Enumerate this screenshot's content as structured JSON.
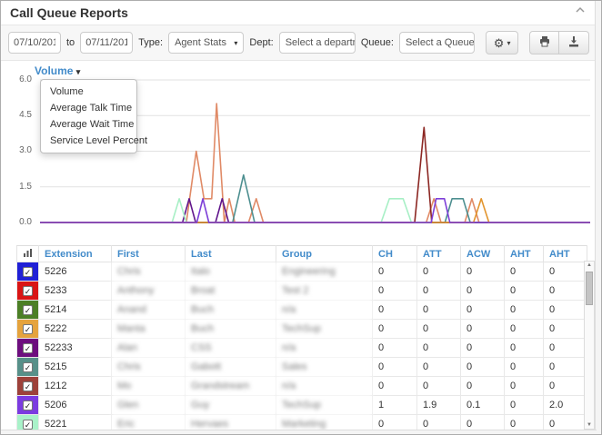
{
  "page": {
    "title": "Call Queue Reports"
  },
  "toolbar": {
    "date_from": "07/10/2014",
    "to_label": "to",
    "date_to": "07/11/2014",
    "type_label": "Type:",
    "type_value": "Agent Stats",
    "dept_label": "Dept:",
    "dept_value": "Select a departme",
    "queue_label": "Queue:",
    "queue_value": "Select a Queue",
    "icons": {
      "gear": "gear-icon",
      "print": "printer-icon",
      "download": "download-icon"
    }
  },
  "metric_dropdown": {
    "selected": "Volume",
    "options": [
      "Volume",
      "Average Talk Time",
      "Average Wait Time",
      "Service Level Percent"
    ]
  },
  "chart_data": {
    "type": "line",
    "title": "Volume",
    "xlabel": "",
    "ylabel": "",
    "ylim": [
      0,
      6
    ],
    "grid": true,
    "yticks": [
      {
        "label": "0.0",
        "value": 0
      },
      {
        "label": "1.5",
        "value": 1.5
      },
      {
        "label": "3.0",
        "value": 3
      },
      {
        "label": "4.5",
        "value": 4.5
      },
      {
        "label": "6.0",
        "value": 6
      }
    ],
    "x_unit": "percent-of-range",
    "series": [
      {
        "name": "5226",
        "color": "#2121d8",
        "points": [
          [
            0,
            0
          ],
          [
            100,
            0
          ]
        ]
      },
      {
        "name": "5233",
        "color": "#d91414",
        "points": [
          [
            0,
            0
          ],
          [
            100,
            0
          ]
        ]
      },
      {
        "name": "5214",
        "color": "#4c8027",
        "points": [
          [
            0,
            0
          ],
          [
            100,
            0
          ]
        ]
      },
      {
        "name": "agent-salmon",
        "color": "#e08a66",
        "points": [
          [
            0,
            0
          ],
          [
            26.6,
            0
          ],
          [
            28.4,
            3
          ],
          [
            29.8,
            1
          ],
          [
            31.2,
            1
          ],
          [
            32.1,
            5
          ],
          [
            33.5,
            0
          ],
          [
            34.4,
            1
          ],
          [
            35.4,
            0
          ],
          [
            37.9,
            0
          ],
          [
            39.3,
            1
          ],
          [
            40.6,
            0
          ],
          [
            70.2,
            0
          ],
          [
            71.6,
            1
          ],
          [
            72.9,
            0
          ],
          [
            77.2,
            0
          ],
          [
            78.5,
            1
          ],
          [
            79.8,
            0
          ],
          [
            100,
            0
          ]
        ]
      },
      {
        "name": "52233",
        "color": "#61168c",
        "points": [
          [
            0,
            0
          ],
          [
            25.9,
            0
          ],
          [
            27.1,
            1
          ],
          [
            28.3,
            0
          ],
          [
            31.9,
            0
          ],
          [
            33.1,
            1
          ],
          [
            34.3,
            0
          ],
          [
            100,
            0
          ]
        ]
      },
      {
        "name": "5221",
        "color": "#a7efc5",
        "points": [
          [
            0,
            0
          ],
          [
            24,
            0
          ],
          [
            25.3,
            1
          ],
          [
            26.6,
            0
          ],
          [
            62,
            0
          ],
          [
            63.5,
            1
          ],
          [
            66,
            1
          ],
          [
            67.5,
            0
          ],
          [
            100,
            0
          ]
        ]
      },
      {
        "name": "5215",
        "color": "#4d8f90",
        "points": [
          [
            0,
            0
          ],
          [
            35,
            0
          ],
          [
            37,
            2
          ],
          [
            39,
            0
          ],
          [
            73.6,
            0
          ],
          [
            74.9,
            1
          ],
          [
            76.9,
            1
          ],
          [
            78.2,
            0
          ],
          [
            100,
            0
          ]
        ]
      },
      {
        "name": "1212",
        "color": "#8c2723",
        "points": [
          [
            0,
            0
          ],
          [
            68.1,
            0
          ],
          [
            69.8,
            4
          ],
          [
            71.2,
            0
          ],
          [
            100,
            0
          ]
        ]
      },
      {
        "name": "5222",
        "color": "#e2952e",
        "points": [
          [
            0,
            0
          ],
          [
            78.8,
            0
          ],
          [
            80.2,
            1
          ],
          [
            81.6,
            0
          ],
          [
            100,
            0
          ]
        ]
      },
      {
        "name": "5206",
        "color": "#7d3fd8",
        "points": [
          [
            0,
            0
          ],
          [
            28.5,
            0
          ],
          [
            29.6,
            1
          ],
          [
            30.7,
            0
          ],
          [
            71.1,
            0
          ],
          [
            72,
            1
          ],
          [
            73.5,
            1
          ],
          [
            74.5,
            0
          ],
          [
            100,
            0
          ]
        ]
      }
    ]
  },
  "table": {
    "columns": [
      "Extension",
      "First",
      "Last",
      "Group",
      "CH",
      "ATT",
      "ACW",
      "AHT",
      "AHT"
    ],
    "rows": [
      {
        "checked": true,
        "color": "#2020d6",
        "extension": "5226",
        "first": "Chris",
        "last": "Italo",
        "group": "Engineering",
        "values": [
          "0",
          "0",
          "0",
          "0",
          "0"
        ]
      },
      {
        "checked": true,
        "color": "#d91515",
        "extension": "5233",
        "first": "Anthony",
        "last": "Broat",
        "group": "Test 2",
        "values": [
          "0",
          "0",
          "0",
          "0",
          "0"
        ]
      },
      {
        "checked": true,
        "color": "#4c7f26",
        "extension": "5214",
        "first": "Anand",
        "last": "Buch",
        "group": "n/a",
        "values": [
          "0",
          "0",
          "0",
          "0",
          "0"
        ]
      },
      {
        "checked": true,
        "color": "#e5a33d",
        "extension": "5222",
        "first": "Manta",
        "last": "Buch",
        "group": "TechSup",
        "values": [
          "0",
          "0",
          "0",
          "0",
          "0"
        ]
      },
      {
        "checked": true,
        "color": "#6d0e7e",
        "extension": "52233",
        "first": "Alan",
        "last": "CSS",
        "group": "n/a",
        "values": [
          "0",
          "0",
          "0",
          "0",
          "0"
        ]
      },
      {
        "checked": true,
        "color": "#579089",
        "extension": "5215",
        "first": "Chris",
        "last": "Gabott",
        "group": "Sales",
        "values": [
          "0",
          "0",
          "0",
          "0",
          "0"
        ]
      },
      {
        "checked": true,
        "color": "#9d413a",
        "extension": "1212",
        "first": "Mo",
        "last": "Grandstream",
        "group": "n/a",
        "values": [
          "0",
          "0",
          "0",
          "0",
          "0"
        ]
      },
      {
        "checked": true,
        "color": "#7b3be0",
        "extension": "5206",
        "first": "Glen",
        "last": "Guy",
        "group": "TechSup",
        "values": [
          "1",
          "1.9",
          "0.1",
          "0",
          "2.0"
        ]
      },
      {
        "checked": true,
        "color": "#a9f2c9",
        "extension": "5221",
        "first": "Eric",
        "last": "Hervaes",
        "group": "Marketing",
        "values": [
          "0",
          "0",
          "0",
          "0",
          "0"
        ]
      }
    ]
  }
}
